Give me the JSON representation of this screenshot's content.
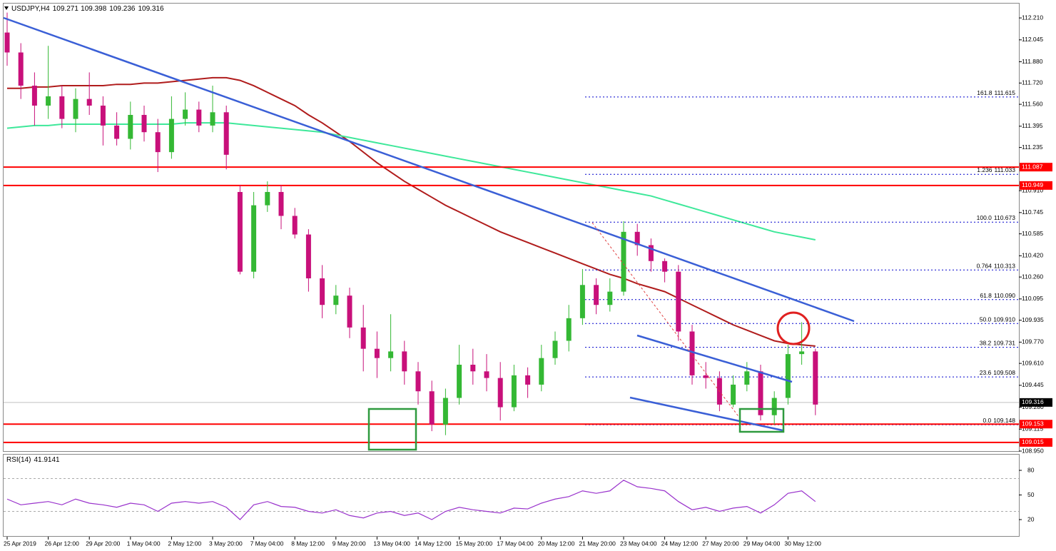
{
  "chart_data": [
    {
      "type": "candlestick",
      "header": {
        "symbol": "USDJPY,H4",
        "ohlc": [
          109.271,
          109.398,
          109.236,
          109.316
        ]
      },
      "categories": [
        "25 Apr 2019",
        null,
        null,
        "26 Apr 12:00",
        null,
        null,
        "29 Apr 20:00",
        null,
        null,
        "1 May 04:00",
        null,
        null,
        "2 May 12:00",
        null,
        null,
        "3 May 20:00",
        null,
        null,
        "7 May 04:00",
        null,
        null,
        "8 May 12:00",
        null,
        null,
        "9 May 20:00",
        null,
        null,
        "13 May 04:00",
        null,
        null,
        "14 May 12:00",
        null,
        null,
        "15 May 20:00",
        null,
        null,
        "17 May 04:00",
        null,
        null,
        "20 May 12:00",
        null,
        null,
        "21 May 20:00",
        null,
        null,
        "23 May 04:00",
        null,
        null,
        "24 May 12:00",
        null,
        null,
        "27 May 20:00",
        null,
        null,
        "29 May 04:00",
        null,
        null,
        "30 May 12:00",
        null,
        null
      ],
      "open": [
        112.1,
        111.95,
        111.7,
        111.55,
        111.62,
        111.45,
        111.6,
        111.55,
        111.4,
        111.3,
        111.48,
        111.35,
        111.2,
        111.45,
        111.52,
        111.4,
        111.5,
        110.9,
        110.3,
        110.8,
        110.9,
        110.72,
        110.58,
        110.25,
        110.05,
        110.12,
        109.88,
        109.72,
        109.65,
        109.7,
        109.55,
        109.4,
        109.15,
        109.35,
        109.6,
        109.55,
        109.5,
        109.28,
        109.52,
        109.45,
        109.65,
        109.78,
        109.95,
        110.2,
        110.05,
        110.15,
        110.6,
        110.5,
        110.38,
        110.3,
        109.85,
        109.52,
        109.5,
        109.3,
        109.45,
        109.55,
        109.22,
        109.35,
        109.68,
        109.7
      ],
      "high": [
        112.25,
        112.02,
        111.8,
        112.0,
        111.7,
        111.68,
        111.8,
        111.62,
        111.5,
        111.58,
        111.55,
        111.45,
        111.62,
        111.65,
        111.58,
        111.7,
        111.55,
        110.95,
        110.9,
        110.98,
        110.95,
        110.78,
        110.62,
        110.35,
        110.2,
        110.18,
        110.05,
        109.85,
        109.98,
        109.78,
        109.62,
        109.48,
        109.42,
        109.75,
        109.72,
        109.68,
        109.62,
        109.6,
        109.58,
        109.75,
        109.85,
        110.05,
        110.32,
        110.25,
        110.25,
        110.68,
        110.66,
        110.55,
        110.4,
        110.35,
        109.9,
        109.62,
        109.55,
        109.52,
        109.62,
        109.6,
        109.4,
        109.75,
        109.92,
        109.72
      ],
      "low": [
        111.85,
        111.6,
        111.4,
        111.45,
        111.38,
        111.35,
        111.48,
        111.25,
        111.25,
        111.22,
        111.28,
        111.05,
        111.15,
        111.4,
        111.35,
        111.35,
        111.07,
        110.28,
        110.25,
        110.75,
        110.62,
        110.55,
        110.15,
        109.95,
        109.98,
        109.8,
        109.55,
        109.5,
        109.55,
        109.45,
        109.3,
        109.1,
        109.07,
        109.3,
        109.45,
        109.4,
        109.18,
        109.25,
        109.35,
        109.4,
        109.6,
        109.7,
        109.9,
        109.98,
        110.0,
        110.12,
        110.42,
        110.3,
        110.22,
        109.78,
        109.45,
        109.42,
        109.25,
        109.28,
        109.4,
        109.18,
        109.15,
        109.3,
        109.6,
        109.22
      ],
      "close": [
        111.95,
        111.7,
        111.55,
        111.62,
        111.45,
        111.6,
        111.55,
        111.4,
        111.3,
        111.48,
        111.35,
        111.2,
        111.45,
        111.52,
        111.4,
        111.5,
        111.18,
        110.3,
        110.8,
        110.9,
        110.72,
        110.58,
        110.25,
        110.05,
        110.12,
        109.88,
        109.72,
        109.65,
        109.7,
        109.55,
        109.4,
        109.15,
        109.35,
        109.6,
        109.55,
        109.5,
        109.28,
        109.52,
        109.45,
        109.65,
        109.78,
        109.95,
        110.2,
        110.05,
        110.15,
        110.6,
        110.5,
        110.38,
        110.3,
        109.85,
        109.52,
        109.5,
        109.3,
        109.45,
        109.55,
        109.22,
        109.35,
        109.68,
        109.7,
        109.3
      ],
      "up_color": "#34b834",
      "down_color": "#c8107a",
      "moving_averages": [
        {
          "color": "#b01c1c",
          "values": [
            111.68,
            111.68,
            111.69,
            111.69,
            111.7,
            111.7,
            111.7,
            111.7,
            111.71,
            111.71,
            111.72,
            111.72,
            111.73,
            111.74,
            111.75,
            111.76,
            111.76,
            111.74,
            111.7,
            111.65,
            111.6,
            111.55,
            111.48,
            111.42,
            111.35,
            111.28,
            111.2,
            111.12,
            111.05,
            110.98,
            110.92,
            110.86,
            110.8,
            110.75,
            110.7,
            110.65,
            110.6,
            110.56,
            110.52,
            110.48,
            110.44,
            110.4,
            110.36,
            110.32,
            110.28,
            110.25,
            110.21,
            110.18,
            110.15,
            110.1,
            110.05,
            110.0,
            109.95,
            109.9,
            109.86,
            109.82,
            109.78,
            109.76,
            109.75,
            109.74
          ]
        },
        {
          "color": "#3ee89a",
          "values": [
            111.38,
            111.39,
            111.4,
            111.4,
            111.41,
            111.41,
            111.41,
            111.41,
            111.41,
            111.41,
            111.41,
            111.41,
            111.41,
            111.42,
            111.42,
            111.42,
            111.42,
            111.41,
            111.4,
            111.39,
            111.38,
            111.37,
            111.36,
            111.35,
            111.33,
            111.31,
            111.29,
            111.27,
            111.25,
            111.23,
            111.21,
            111.19,
            111.17,
            111.15,
            111.13,
            111.11,
            111.09,
            111.07,
            111.05,
            111.03,
            111.01,
            110.99,
            110.97,
            110.95,
            110.93,
            110.91,
            110.89,
            110.87,
            110.84,
            110.81,
            110.78,
            110.75,
            110.72,
            110.69,
            110.66,
            110.63,
            110.6,
            110.58,
            110.56,
            110.54
          ]
        }
      ],
      "ylim": [
        108.95,
        112.318
      ],
      "yticks": [
        {
          "value": 112.21,
          "label": "112.210"
        },
        112.045,
        {
          "value": 111.88,
          "label": "111.880"
        },
        {
          "value": 111.72,
          "label": "111.720"
        },
        {
          "value": 111.56,
          "label": "111.560"
        },
        111.395,
        111.235,
        {
          "value": 110.91,
          "label": "110.910"
        },
        110.745,
        110.585,
        {
          "value": 110.42,
          "label": "110.420"
        },
        {
          "value": 110.26,
          "label": "110.260"
        },
        110.095,
        109.935,
        {
          "value": 109.77,
          "label": "109.770"
        },
        {
          "value": 109.61,
          "label": "109.610"
        },
        109.445,
        {
          "value": 109.28,
          "label": "109.280"
        },
        109.115,
        {
          "value": 108.95,
          "label": "108.950"
        }
      ],
      "levels": [
        111.087,
        110.949,
        109.153,
        109.015
      ],
      "level_color": "#ff0000",
      "current_price": 109.316,
      "fib_levels": [
        {
          "level": "161.8",
          "value": 111.615
        },
        {
          "level": "1.236",
          "value": 111.033
        },
        {
          "level": "100.0",
          "value": 110.673
        },
        {
          "level": "0.764",
          "value": 110.313
        },
        {
          "level": "61.8",
          "value": 110.09,
          "label": "110.090"
        },
        {
          "level": "50.0",
          "value": 109.91,
          "label": "109.910"
        },
        {
          "level": "38.2",
          "value": 109.731
        },
        {
          "level": "23.6",
          "value": 109.508
        },
        {
          "level": "0.0",
          "value": 109.148
        }
      ],
      "fib_color": "#0000cd"
    },
    {
      "type": "line",
      "label": "RSI(14)",
      "value": 41.9141,
      "color": "#9932cc",
      "values": [
        45,
        38,
        40,
        42,
        38,
        45,
        40,
        38,
        35,
        40,
        38,
        30,
        40,
        42,
        40,
        42,
        35,
        20,
        38,
        42,
        36,
        35,
        30,
        28,
        32,
        25,
        22,
        28,
        30,
        25,
        28,
        20,
        30,
        35,
        32,
        30,
        28,
        34,
        33,
        40,
        45,
        48,
        55,
        52,
        55,
        68,
        60,
        58,
        55,
        42,
        32,
        35,
        30,
        34,
        36,
        28,
        38,
        52,
        55,
        42
      ],
      "ylim": [
        0,
        100
      ],
      "yticks": [
        80,
        50,
        20
      ],
      "levels": [
        70,
        30
      ]
    }
  ]
}
